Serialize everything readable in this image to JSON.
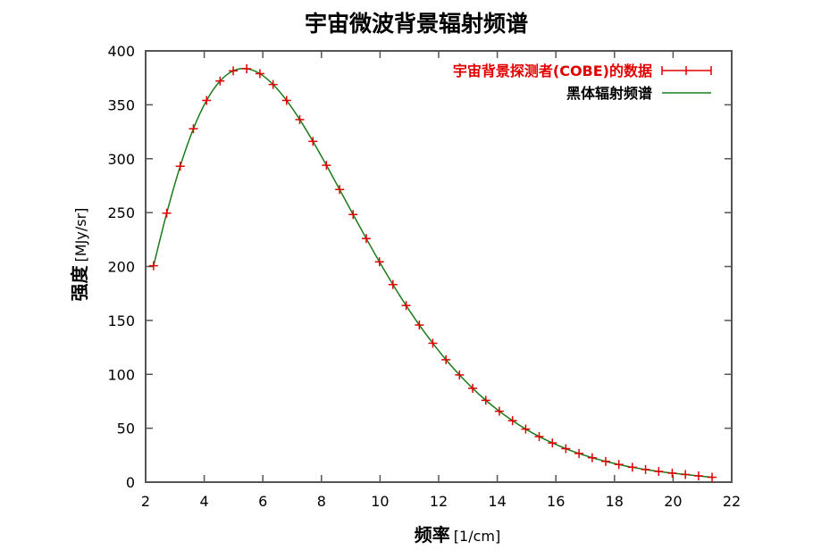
{
  "chart_data": {
    "type": "line",
    "title": "宇宙微波背景辐射频谱",
    "xlabel": "频率",
    "xlabel_unit": "[1/cm]",
    "ylabel": "强度",
    "ylabel_unit": "[MJy/sr]",
    "xlim": [
      2,
      22
    ],
    "ylim": [
      0,
      400
    ],
    "xticks": [
      "2",
      "4",
      "6",
      "8",
      "10",
      "12",
      "14",
      "16",
      "18",
      "20",
      "22"
    ],
    "yticks": [
      "0",
      "50",
      "100",
      "150",
      "200",
      "250",
      "300",
      "350",
      "400"
    ],
    "grid": false,
    "legend_position": "top-right",
    "colors": {
      "data": "#e00000",
      "curve": "#1a7a1a",
      "axis": "#555555"
    },
    "series": [
      {
        "name": "宇宙背景探测者(COBE)的数据",
        "style": "points-with-errorbars",
        "x": [
          2.27,
          2.72,
          3.18,
          3.63,
          4.08,
          4.54,
          4.99,
          5.45,
          5.9,
          6.35,
          6.81,
          7.26,
          7.71,
          8.17,
          8.62,
          9.08,
          9.53,
          9.98,
          10.44,
          10.89,
          11.34,
          11.8,
          12.25,
          12.71,
          13.16,
          13.61,
          14.07,
          14.52,
          14.97,
          15.43,
          15.88,
          16.34,
          16.79,
          17.24,
          17.7,
          18.15,
          18.61,
          19.06,
          19.51,
          19.97,
          20.42,
          20.87,
          21.33
        ],
        "y": [
          200.72,
          249.51,
          293.02,
          327.77,
          354.08,
          372.08,
          381.49,
          383.48,
          378.9,
          368.83,
          354.06,
          336.28,
          316.08,
          293.92,
          271.43,
          248.24,
          225.94,
          204.33,
          183.26,
          163.83,
          145.75,
          128.84,
          113.57,
          99.45,
          87.04,
          75.88,
          65.77,
          57.01,
          49.22,
          42.27,
          36.35,
          31.06,
          26.58,
          22.64,
          19.26,
          16.39,
          13.81,
          11.72,
          9.92,
          8.36,
          7.09,
          5.8,
          4.52
        ]
      },
      {
        "name": "黑体辐射频谱",
        "style": "line"
      }
    ]
  }
}
